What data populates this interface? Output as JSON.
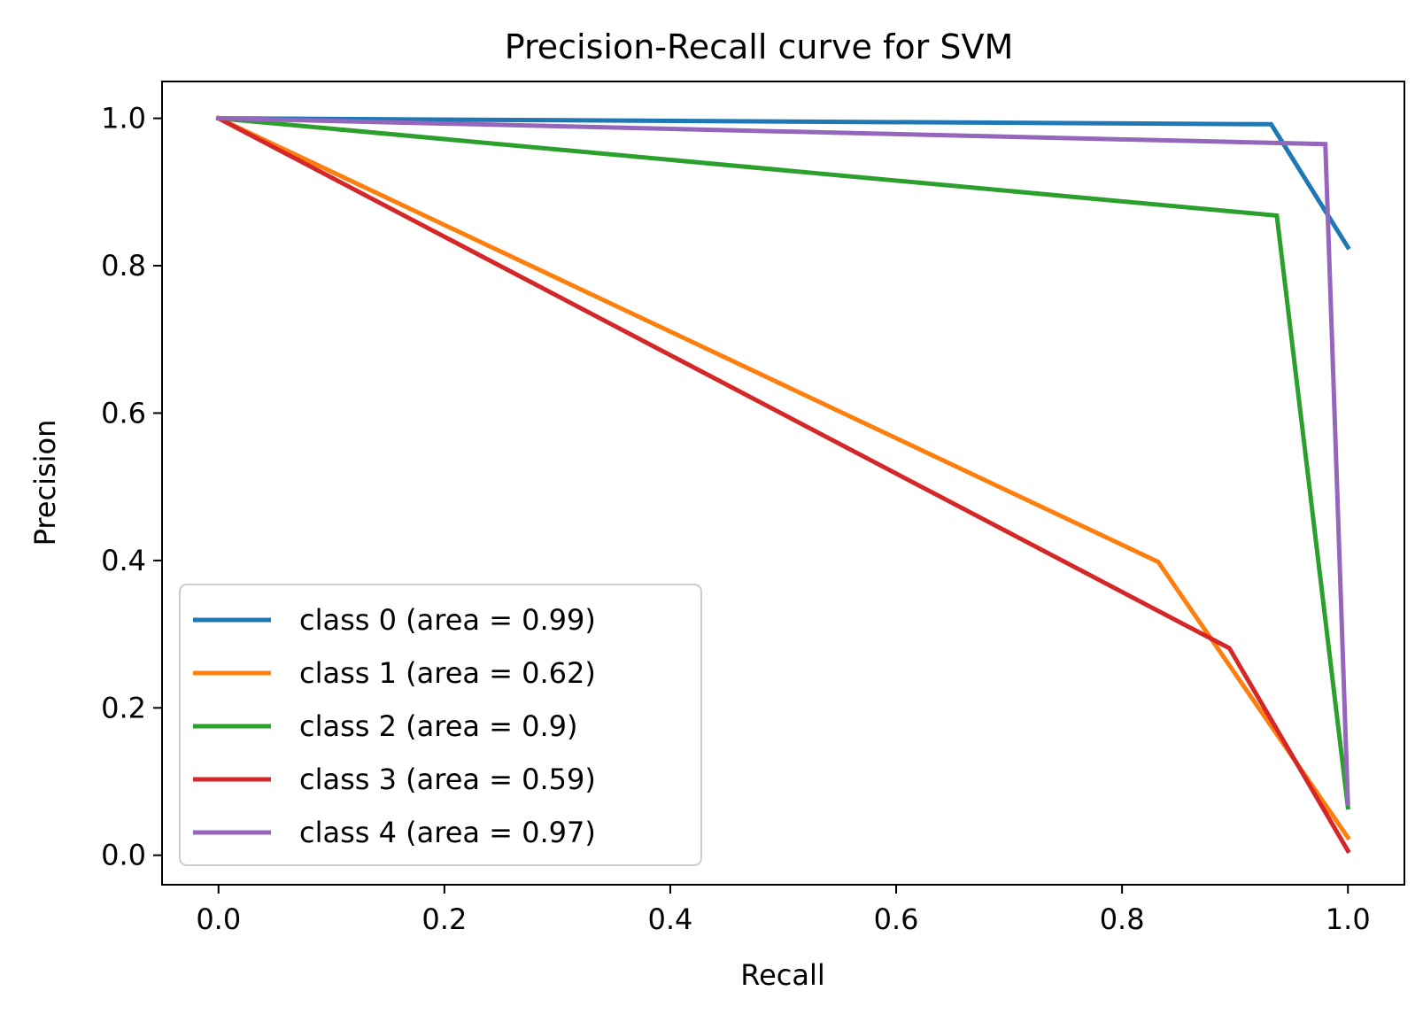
{
  "chart_data": {
    "type": "line",
    "title": "Precision-Recall curve for SVM",
    "xlabel": "Recall",
    "ylabel": "Precision",
    "xlim": [
      -0.05,
      1.05
    ],
    "ylim": [
      -0.04,
      1.05
    ],
    "xticks": [
      0.0,
      0.2,
      0.4,
      0.6,
      0.8,
      1.0
    ],
    "yticks": [
      0.0,
      0.2,
      0.4,
      0.6,
      0.8,
      1.0
    ],
    "xtick_labels": [
      "0.0",
      "0.2",
      "0.4",
      "0.6",
      "0.8",
      "1.0"
    ],
    "ytick_labels": [
      "0.0",
      "0.2",
      "0.4",
      "0.6",
      "0.8",
      "1.0"
    ],
    "grid": false,
    "legend_position": "lower-left",
    "series": [
      {
        "name": "class 0 (area = 0.99)",
        "color": "#1f77b4",
        "x": [
          0.0,
          0.932,
          1.0
        ],
        "y": [
          1.0,
          0.992,
          0.825
        ]
      },
      {
        "name": "class 1 (area = 0.62)",
        "color": "#ff7f0e",
        "x": [
          0.0,
          0.832,
          1.0
        ],
        "y": [
          1.0,
          0.398,
          0.024
        ]
      },
      {
        "name": "class 2 (area = 0.9)",
        "color": "#2ca02c",
        "x": [
          0.0,
          0.937,
          1.0
        ],
        "y": [
          1.0,
          0.868,
          0.065
        ]
      },
      {
        "name": "class 3 (area = 0.59)",
        "color": "#d62728",
        "x": [
          0.0,
          0.895,
          1.0
        ],
        "y": [
          1.0,
          0.281,
          0.006
        ]
      },
      {
        "name": "class 4 (area = 0.97)",
        "color": "#9467bd",
        "x": [
          0.0,
          0.98,
          1.0
        ],
        "y": [
          1.0,
          0.965,
          0.07
        ]
      }
    ]
  }
}
